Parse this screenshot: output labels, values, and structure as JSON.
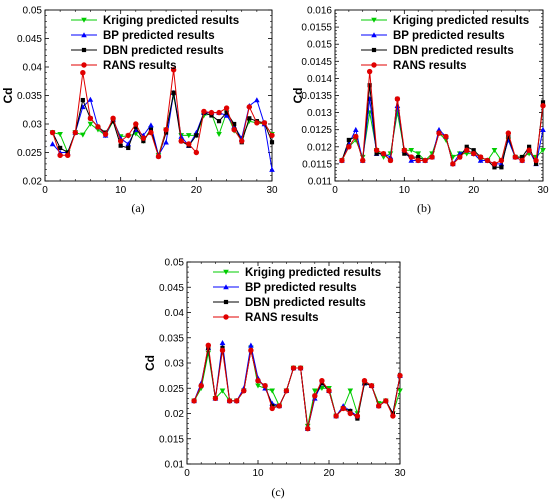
{
  "chart_data": [
    {
      "type": "line",
      "caption": "(a)",
      "ylabel": "Cd",
      "xlim": [
        0,
        30
      ],
      "ylim": [
        0.02,
        0.05
      ],
      "xticks": [
        "0",
        "10",
        "20",
        "30"
      ],
      "yticks": [
        "0.02",
        "0.025",
        "0.03",
        "0.035",
        "0.04",
        "0.045",
        "0.05"
      ],
      "legend_position": "top-right",
      "x": [
        1,
        2,
        3,
        4,
        5,
        6,
        7,
        8,
        9,
        10,
        11,
        12,
        13,
        14,
        15,
        16,
        17,
        18,
        19,
        20,
        21,
        22,
        23,
        24,
        25,
        26,
        27,
        28,
        29,
        30
      ],
      "series": [
        {
          "name": "Kriging predicted results",
          "color": "#00cc00",
          "marker": "triangle-down",
          "values": [
            0.0285,
            0.0282,
            0.025,
            0.0285,
            0.0281,
            0.03,
            0.029,
            0.028,
            0.0305,
            0.0278,
            0.0279,
            0.0283,
            0.027,
            0.0292,
            0.0245,
            0.029,
            0.035,
            0.028,
            0.028,
            0.028,
            0.0315,
            0.0318,
            0.0282,
            0.032,
            0.0288,
            0.0275,
            0.0305,
            0.0302,
            0.03,
            0.0282
          ]
        },
        {
          "name": "BP predicted results",
          "color": "#0000ff",
          "marker": "triangle-up",
          "values": [
            0.0265,
            0.025,
            0.025,
            0.0285,
            0.033,
            0.0343,
            0.0295,
            0.028,
            0.0308,
            0.0275,
            0.0265,
            0.029,
            0.028,
            0.0298,
            0.0245,
            0.0268,
            0.0355,
            0.0278,
            0.0262,
            0.0285,
            0.032,
            0.032,
            0.032,
            0.0315,
            0.0296,
            0.0275,
            0.0332,
            0.0342,
            0.03,
            0.022
          ]
        },
        {
          "name": "DBN predicted results",
          "color": "#000000",
          "marker": "square",
          "values": [
            0.0285,
            0.0258,
            0.025,
            0.0285,
            0.0342,
            0.031,
            0.0295,
            0.0285,
            0.0305,
            0.0262,
            0.0258,
            0.0295,
            0.027,
            0.029,
            0.0243,
            0.0285,
            0.0355,
            0.027,
            0.0262,
            0.028,
            0.032,
            0.0315,
            0.0305,
            0.032,
            0.03,
            0.0268,
            0.031,
            0.0305,
            0.0302,
            0.0268
          ]
        },
        {
          "name": "RANS results",
          "color": "#e00000",
          "marker": "circle",
          "values": [
            0.0285,
            0.0245,
            0.0245,
            0.0285,
            0.039,
            0.031,
            0.0295,
            0.0282,
            0.031,
            0.027,
            0.028,
            0.03,
            0.0275,
            0.0285,
            0.0243,
            0.029,
            0.0395,
            0.027,
            0.0265,
            0.025,
            0.0322,
            0.032,
            0.032,
            0.0328,
            0.029,
            0.027,
            0.033,
            0.0302,
            0.0302,
            0.028
          ]
        }
      ]
    },
    {
      "type": "line",
      "caption": "(b)",
      "ylabel": "Cd",
      "xlim": [
        0,
        30
      ],
      "ylim": [
        0.011,
        0.016
      ],
      "xticks": [
        "0",
        "10",
        "20",
        "30"
      ],
      "yticks": [
        "0.011",
        "0.0115",
        "0.012",
        "0.0125",
        "0.013",
        "0.0135",
        "0.014",
        "0.0145",
        "0.015",
        "0.0155",
        "0.016"
      ],
      "legend_position": "top-right",
      "x": [
        1,
        2,
        3,
        4,
        5,
        6,
        7,
        8,
        9,
        10,
        11,
        12,
        13,
        14,
        15,
        16,
        17,
        18,
        19,
        20,
        21,
        22,
        23,
        24,
        25,
        26,
        27,
        28,
        29,
        30
      ],
      "series": [
        {
          "name": "Kriging predicted results",
          "color": "#00cc00",
          "marker": "triangle-down",
          "values": [
            0.0116,
            0.012,
            0.0122,
            0.0117,
            0.013,
            0.0119,
            0.0117,
            0.0118,
            0.013,
            0.0119,
            0.0119,
            0.0118,
            0.0116,
            0.0118,
            0.0124,
            0.0122,
            0.0117,
            0.0118,
            0.0118,
            0.0118,
            0.0116,
            0.0116,
            0.0119,
            0.0116,
            0.0122,
            0.0117,
            0.0117,
            0.0118,
            0.0117,
            0.0119
          ]
        },
        {
          "name": "BP predicted results",
          "color": "#0000ff",
          "marker": "triangle-up",
          "values": [
            0.0116,
            0.0121,
            0.0125,
            0.0116,
            0.0134,
            0.0118,
            0.0118,
            0.0117,
            0.0132,
            0.0119,
            0.0116,
            0.0116,
            0.0116,
            0.0117,
            0.0125,
            0.0123,
            0.0115,
            0.0118,
            0.0119,
            0.0118,
            0.0116,
            0.0116,
            0.0115,
            0.0115,
            0.0122,
            0.0117,
            0.0116,
            0.0119,
            0.0115,
            0.0125
          ]
        },
        {
          "name": "DBN predicted results",
          "color": "#000000",
          "marker": "square",
          "values": [
            0.0116,
            0.0122,
            0.0123,
            0.0116,
            0.0138,
            0.0118,
            0.0118,
            0.0116,
            0.0134,
            0.0118,
            0.0117,
            0.0117,
            0.0116,
            0.0117,
            0.0124,
            0.0123,
            0.0115,
            0.0117,
            0.012,
            0.0119,
            0.0117,
            0.0116,
            0.0114,
            0.0114,
            0.0123,
            0.0117,
            0.0117,
            0.012,
            0.0115,
            0.0133
          ]
        },
        {
          "name": "RANS results",
          "color": "#e00000",
          "marker": "circle",
          "values": [
            0.0116,
            0.012,
            0.0123,
            0.0116,
            0.0142,
            0.0119,
            0.0118,
            0.0116,
            0.0134,
            0.0119,
            0.0117,
            0.0116,
            0.0116,
            0.0117,
            0.0124,
            0.0123,
            0.0115,
            0.0117,
            0.0119,
            0.0118,
            0.0117,
            0.0116,
            0.0115,
            0.0116,
            0.0124,
            0.0117,
            0.0116,
            0.0119,
            0.0116,
            0.0132
          ]
        }
      ]
    },
    {
      "type": "line",
      "caption": "(c)",
      "ylabel": "Cd",
      "xlim": [
        0,
        30
      ],
      "ylim": [
        0.01,
        0.05
      ],
      "xticks": [
        "0",
        "10",
        "20",
        "30"
      ],
      "yticks": [
        "0.01",
        "0.015",
        "0.02",
        "0.025",
        "0.03",
        "0.035",
        "0.04",
        "0.045",
        "0.05"
      ],
      "legend_position": "top-right",
      "x": [
        1,
        2,
        3,
        4,
        5,
        6,
        7,
        8,
        9,
        10,
        11,
        12,
        13,
        14,
        15,
        16,
        17,
        18,
        19,
        20,
        21,
        22,
        23,
        24,
        25,
        26,
        27,
        28,
        29,
        30
      ],
      "series": [
        {
          "name": "Kriging predicted results",
          "color": "#00cc00",
          "marker": "triangle-down",
          "values": [
            0.0225,
            0.025,
            0.032,
            0.023,
            0.0245,
            0.0225,
            0.0225,
            0.0245,
            0.033,
            0.0255,
            0.025,
            0.0245,
            0.0215,
            0.0245,
            0.029,
            0.029,
            0.0175,
            0.0245,
            0.025,
            0.025,
            0.0195,
            0.021,
            0.0245,
            0.02,
            0.026,
            0.0255,
            0.022,
            0.0225,
            0.02,
            0.0245
          ]
        },
        {
          "name": "BP predicted results",
          "color": "#0000ff",
          "marker": "triangle-up",
          "values": [
            0.0225,
            0.026,
            0.033,
            0.023,
            0.034,
            0.0225,
            0.0225,
            0.025,
            0.0335,
            0.027,
            0.025,
            0.022,
            0.0215,
            0.0245,
            0.029,
            0.029,
            0.017,
            0.023,
            0.026,
            0.0245,
            0.0195,
            0.0215,
            0.0205,
            0.0195,
            0.026,
            0.0255,
            0.0215,
            0.0225,
            0.02,
            0.0275
          ]
        },
        {
          "name": "DBN predicted results",
          "color": "#000000",
          "marker": "square",
          "values": [
            0.0225,
            0.0255,
            0.033,
            0.023,
            0.033,
            0.0225,
            0.0225,
            0.0245,
            0.0325,
            0.0265,
            0.0255,
            0.0215,
            0.0215,
            0.0245,
            0.029,
            0.029,
            0.017,
            0.0235,
            0.026,
            0.0245,
            0.0195,
            0.021,
            0.0205,
            0.019,
            0.026,
            0.0255,
            0.0215,
            0.0225,
            0.02,
            0.0275
          ]
        },
        {
          "name": "RANS results",
          "color": "#e00000",
          "marker": "circle",
          "values": [
            0.0225,
            0.0255,
            0.0335,
            0.023,
            0.0325,
            0.0225,
            0.0225,
            0.0245,
            0.0325,
            0.0265,
            0.0255,
            0.021,
            0.0215,
            0.0245,
            0.029,
            0.029,
            0.017,
            0.0235,
            0.0265,
            0.0245,
            0.0195,
            0.021,
            0.02,
            0.0195,
            0.0265,
            0.0255,
            0.0215,
            0.0225,
            0.0195,
            0.0275
          ]
        }
      ]
    }
  ]
}
